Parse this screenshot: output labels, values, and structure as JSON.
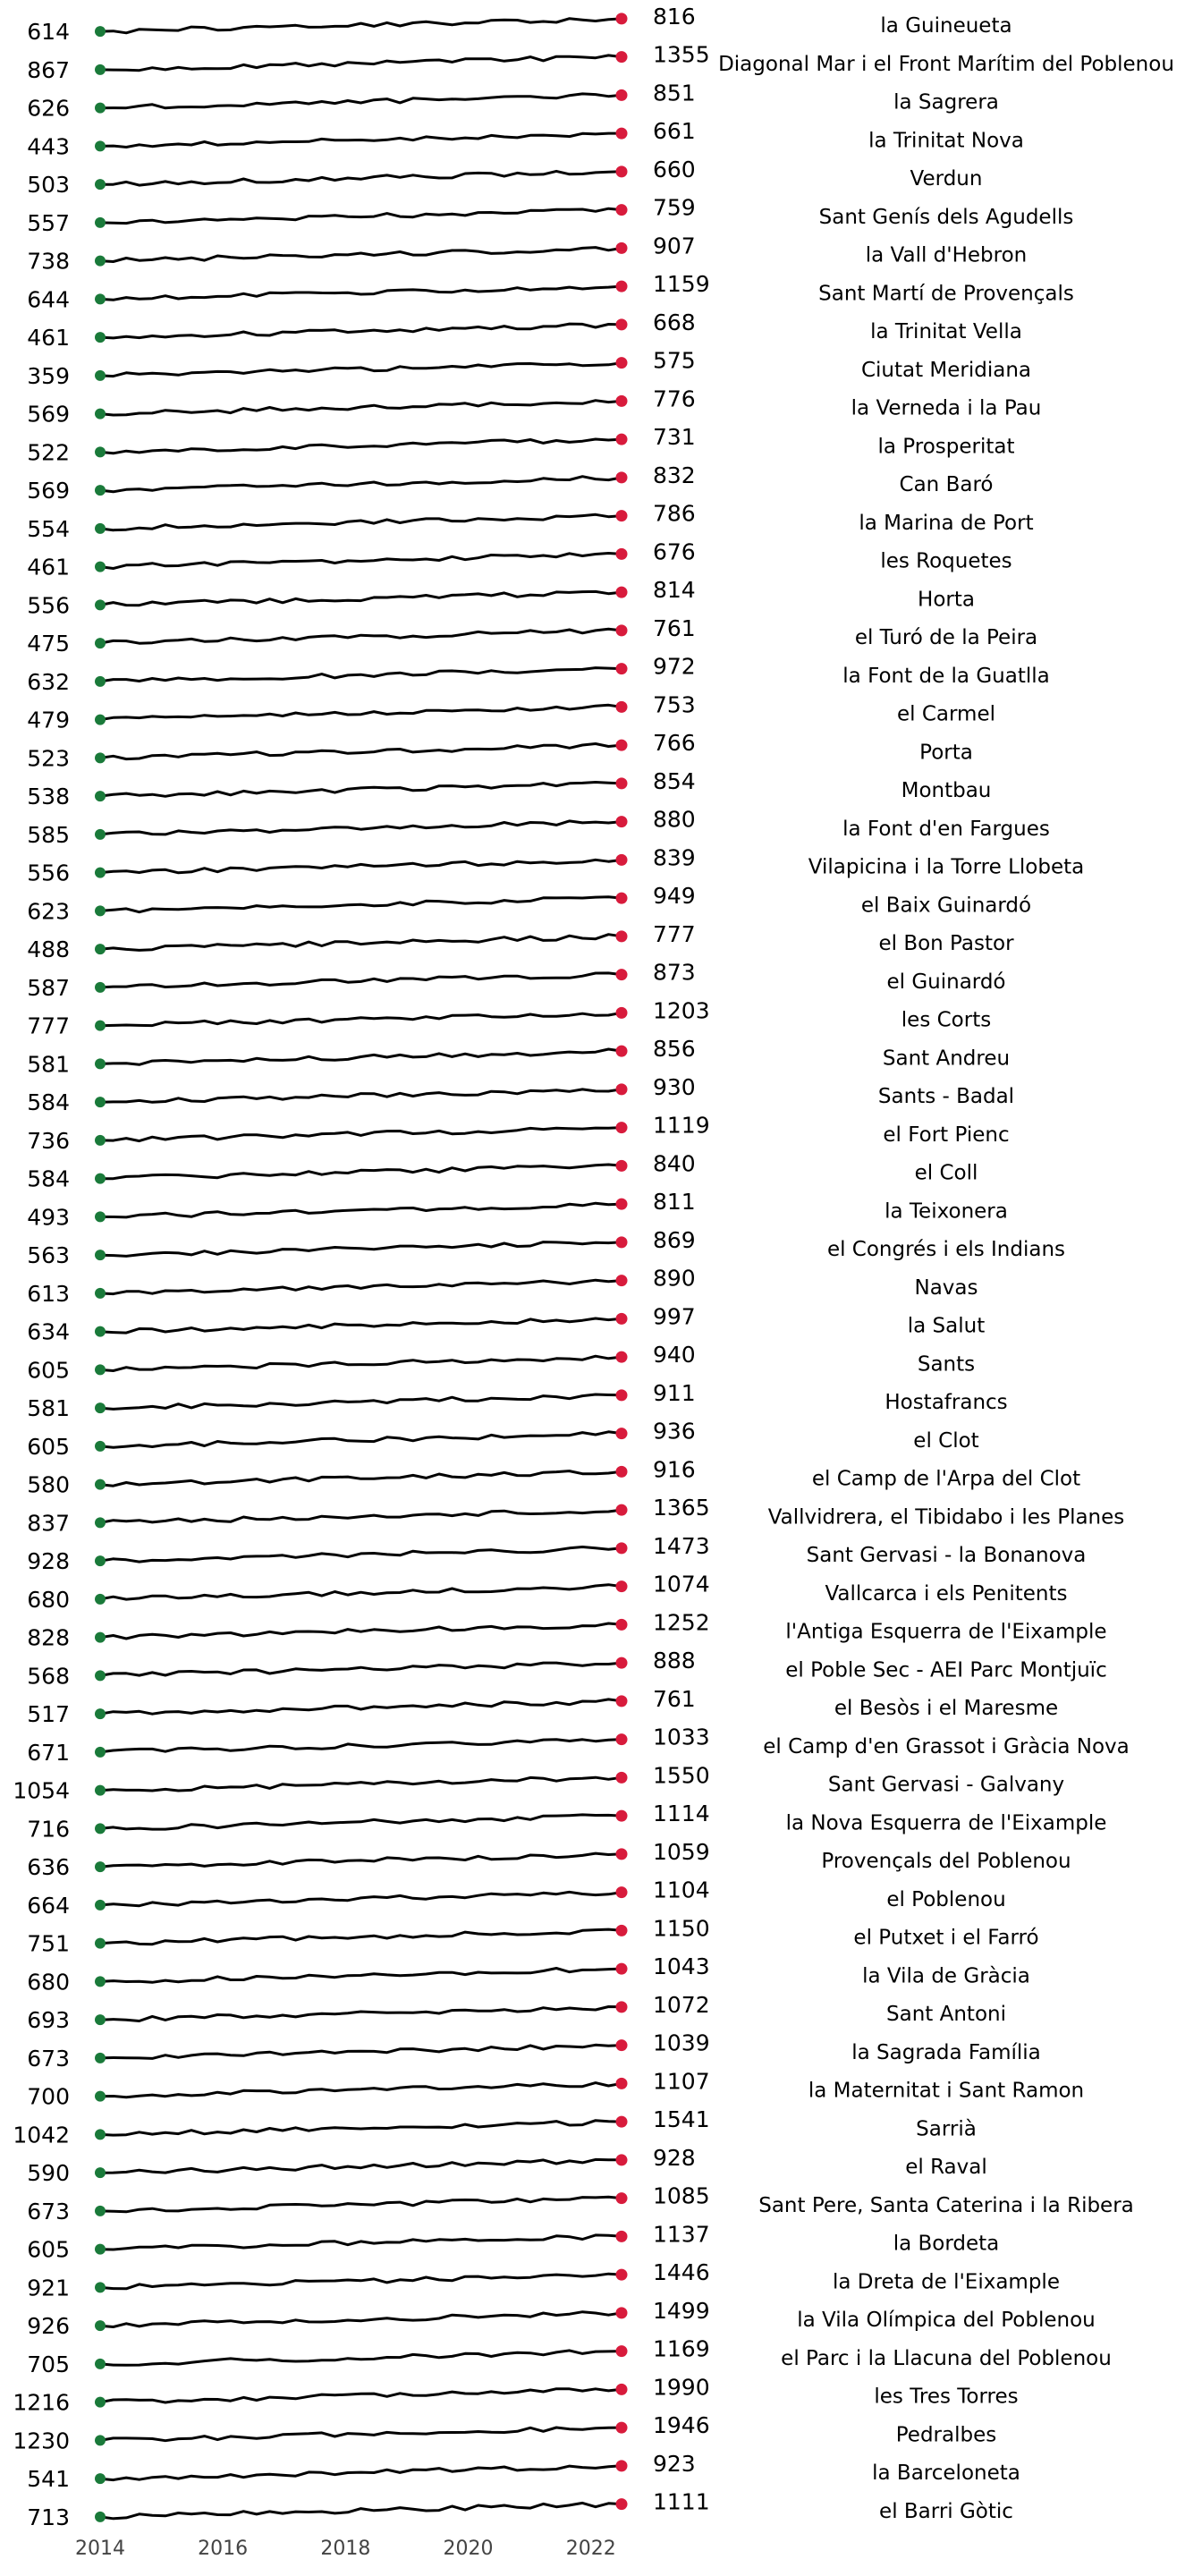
{
  "chart_data": {
    "type": "line",
    "title": "",
    "xlabel": "",
    "ylabel": "",
    "x_range": [
      2014,
      2022.5
    ],
    "x_ticks": [
      "2014",
      "2016",
      "2018",
      "2020",
      "2022"
    ],
    "grid": false,
    "start_marker_color": "#1a7a3a",
    "end_marker_color": "#d81b3c",
    "line_color": "#000000",
    "series": [
      {
        "name": "la Guineueta",
        "start": 614,
        "end": 816
      },
      {
        "name": "Diagonal Mar i el Front Marítim del Poblenou",
        "start": 867,
        "end": 1355
      },
      {
        "name": "la Sagrera",
        "start": 626,
        "end": 851
      },
      {
        "name": "la Trinitat Nova",
        "start": 443,
        "end": 661
      },
      {
        "name": "Verdun",
        "start": 503,
        "end": 660
      },
      {
        "name": "Sant Genís dels Agudells",
        "start": 557,
        "end": 759
      },
      {
        "name": "la Vall d'Hebron",
        "start": 738,
        "end": 907
      },
      {
        "name": "Sant Martí de Provençals",
        "start": 644,
        "end": 1159
      },
      {
        "name": "la Trinitat Vella",
        "start": 461,
        "end": 668
      },
      {
        "name": "Ciutat Meridiana",
        "start": 359,
        "end": 575
      },
      {
        "name": "la Verneda i la Pau",
        "start": 569,
        "end": 776
      },
      {
        "name": "la Prosperitat",
        "start": 522,
        "end": 731
      },
      {
        "name": "Can Baró",
        "start": 569,
        "end": 832
      },
      {
        "name": "la Marina de Port",
        "start": 554,
        "end": 786
      },
      {
        "name": "les Roquetes",
        "start": 461,
        "end": 676
      },
      {
        "name": "Horta",
        "start": 556,
        "end": 814
      },
      {
        "name": "el Turó de la Peira",
        "start": 475,
        "end": 761
      },
      {
        "name": "la Font de la Guatlla",
        "start": 632,
        "end": 972
      },
      {
        "name": "el Carmel",
        "start": 479,
        "end": 753
      },
      {
        "name": "Porta",
        "start": 523,
        "end": 766
      },
      {
        "name": "Montbau",
        "start": 538,
        "end": 854
      },
      {
        "name": "la Font d'en Fargues",
        "start": 585,
        "end": 880
      },
      {
        "name": "Vilapicina i la Torre Llobeta",
        "start": 556,
        "end": 839
      },
      {
        "name": "el Baix Guinardó",
        "start": 623,
        "end": 949
      },
      {
        "name": "el Bon Pastor",
        "start": 488,
        "end": 777
      },
      {
        "name": "el Guinardó",
        "start": 587,
        "end": 873
      },
      {
        "name": "les Corts",
        "start": 777,
        "end": 1203
      },
      {
        "name": "Sant Andreu",
        "start": 581,
        "end": 856
      },
      {
        "name": "Sants - Badal",
        "start": 584,
        "end": 930
      },
      {
        "name": "el Fort Pienc",
        "start": 736,
        "end": 1119
      },
      {
        "name": "el Coll",
        "start": 584,
        "end": 840
      },
      {
        "name": "la Teixonera",
        "start": 493,
        "end": 811
      },
      {
        "name": "el Congrés i els Indians",
        "start": 563,
        "end": 869
      },
      {
        "name": "Navas",
        "start": 613,
        "end": 890
      },
      {
        "name": "la Salut",
        "start": 634,
        "end": 997
      },
      {
        "name": "Sants",
        "start": 605,
        "end": 940
      },
      {
        "name": "Hostafrancs",
        "start": 581,
        "end": 911
      },
      {
        "name": "el Clot",
        "start": 605,
        "end": 936
      },
      {
        "name": "el Camp de l'Arpa del Clot",
        "start": 580,
        "end": 916
      },
      {
        "name": "Vallvidrera, el Tibidabo i les Planes",
        "start": 837,
        "end": 1365
      },
      {
        "name": "Sant Gervasi - la Bonanova",
        "start": 928,
        "end": 1473
      },
      {
        "name": "Vallcarca i els Penitents",
        "start": 680,
        "end": 1074
      },
      {
        "name": "l'Antiga Esquerra de l'Eixample",
        "start": 828,
        "end": 1252
      },
      {
        "name": "el Poble Sec - AEI Parc Montjuïc",
        "start": 568,
        "end": 888
      },
      {
        "name": "el Besòs i el Maresme",
        "start": 517,
        "end": 761
      },
      {
        "name": "el Camp d'en Grassot i Gràcia Nova",
        "start": 671,
        "end": 1033
      },
      {
        "name": "Sant Gervasi - Galvany",
        "start": 1054,
        "end": 1550
      },
      {
        "name": "la Nova Esquerra de l'Eixample",
        "start": 716,
        "end": 1114
      },
      {
        "name": "Provençals del Poblenou",
        "start": 636,
        "end": 1059
      },
      {
        "name": "el Poblenou",
        "start": 664,
        "end": 1104
      },
      {
        "name": "el Putxet i el Farró",
        "start": 751,
        "end": 1150
      },
      {
        "name": "la Vila de Gràcia",
        "start": 680,
        "end": 1043
      },
      {
        "name": "Sant Antoni",
        "start": 693,
        "end": 1072
      },
      {
        "name": "la Sagrada Família",
        "start": 673,
        "end": 1039
      },
      {
        "name": "la Maternitat i Sant Ramon",
        "start": 700,
        "end": 1107
      },
      {
        "name": "Sarrià",
        "start": 1042,
        "end": 1541
      },
      {
        "name": "el Raval",
        "start": 590,
        "end": 928
      },
      {
        "name": "Sant Pere, Santa Caterina i la Ribera",
        "start": 673,
        "end": 1085
      },
      {
        "name": "la Bordeta",
        "start": 605,
        "end": 1137
      },
      {
        "name": "la Dreta de l'Eixample",
        "start": 921,
        "end": 1446
      },
      {
        "name": "la Vila Olímpica del Poblenou",
        "start": 926,
        "end": 1499
      },
      {
        "name": "el Parc i la Llacuna del Poblenou",
        "start": 705,
        "end": 1169
      },
      {
        "name": "les Tres Torres",
        "start": 1216,
        "end": 1990
      },
      {
        "name": "Pedralbes",
        "start": 1230,
        "end": 1946
      },
      {
        "name": "la Barceloneta",
        "start": 541,
        "end": 923
      },
      {
        "name": "el Barri Gòtic",
        "start": 713,
        "end": 1111
      }
    ]
  }
}
